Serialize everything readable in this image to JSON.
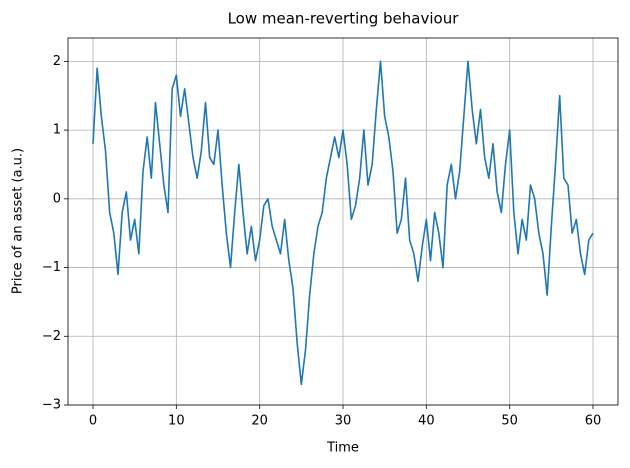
{
  "chart_data": {
    "type": "line",
    "title": "Low mean-reverting behaviour",
    "xlabel": "Time",
    "ylabel": "Price of an asset (a.u.)",
    "x": [
      0,
      0.5,
      1,
      1.5,
      2,
      2.5,
      3,
      3.5,
      4,
      4.5,
      5,
      5.5,
      6,
      6.5,
      7,
      7.5,
      8,
      8.5,
      9,
      9.5,
      10,
      10.5,
      11,
      11.5,
      12,
      12.5,
      13,
      13.5,
      14,
      14.5,
      15,
      15.5,
      16,
      16.5,
      17,
      17.5,
      18,
      18.5,
      19,
      19.5,
      20,
      20.5,
      21,
      21.5,
      22,
      22.5,
      23,
      23.5,
      24,
      24.5,
      25,
      25.5,
      26,
      26.5,
      27,
      27.5,
      28,
      28.5,
      29,
      29.5,
      30,
      30.5,
      31,
      31.5,
      32,
      32.5,
      33,
      33.5,
      34,
      34.5,
      35,
      35.5,
      36,
      36.5,
      37,
      37.5,
      38,
      38.5,
      39,
      39.5,
      40,
      40.5,
      41,
      41.5,
      42,
      42.5,
      43,
      43.5,
      44,
      44.5,
      45,
      45.5,
      46,
      46.5,
      47,
      47.5,
      48,
      48.5,
      49,
      49.5,
      50,
      50.5,
      51,
      51.5,
      52,
      52.5,
      53,
      53.5,
      54,
      54.5,
      55,
      55.5,
      56,
      56.5,
      57,
      57.5,
      58,
      58.5,
      59,
      59.5,
      60
    ],
    "series": [
      {
        "name": "price",
        "color": "#1f77b4",
        "values": [
          0.8,
          1.9,
          1.2,
          0.7,
          -0.2,
          -0.5,
          -1.1,
          -0.2,
          0.1,
          -0.6,
          -0.3,
          -0.8,
          0.4,
          0.9,
          0.3,
          1.4,
          0.8,
          0.2,
          -0.2,
          1.6,
          1.8,
          1.2,
          1.6,
          1.1,
          0.6,
          0.3,
          0.7,
          1.4,
          0.6,
          0.5,
          1.0,
          0.2,
          -0.5,
          -1.0,
          -0.2,
          0.5,
          -0.2,
          -0.8,
          -0.4,
          -0.9,
          -0.6,
          -0.1,
          0.0,
          -0.4,
          -0.6,
          -0.8,
          -0.3,
          -0.9,
          -1.3,
          -2.1,
          -2.7,
          -2.2,
          -1.4,
          -0.8,
          -0.4,
          -0.2,
          0.3,
          0.6,
          0.9,
          0.6,
          1.0,
          0.5,
          -0.3,
          -0.1,
          0.3,
          1.0,
          0.2,
          0.5,
          1.3,
          2.0,
          1.2,
          0.9,
          0.4,
          -0.5,
          -0.3,
          0.3,
          -0.6,
          -0.8,
          -1.2,
          -0.7,
          -0.3,
          -0.9,
          -0.2,
          -0.5,
          -1.0,
          0.2,
          0.5,
          0.0,
          0.4,
          1.2,
          2.0,
          1.3,
          0.8,
          1.3,
          0.6,
          0.3,
          0.8,
          0.1,
          -0.2,
          0.5,
          1.0,
          -0.2,
          -0.8,
          -0.3,
          -0.6,
          0.2,
          0.0,
          -0.5,
          -0.8,
          -1.4,
          -0.4,
          0.5,
          1.5,
          0.3,
          0.2,
          -0.5,
          -0.3,
          -0.8,
          -1.1,
          -0.6,
          -0.5
        ]
      }
    ],
    "xlim": [
      -3,
      63
    ],
    "ylim": [
      -3.0,
      2.34
    ],
    "xticks": [
      0,
      10,
      20,
      30,
      40,
      50,
      60
    ],
    "yticks": [
      {
        "value": -3,
        "label": "−3"
      },
      {
        "value": -2,
        "label": "−2"
      },
      {
        "value": -1,
        "label": "−1"
      },
      0,
      1,
      2
    ],
    "grid": true
  }
}
